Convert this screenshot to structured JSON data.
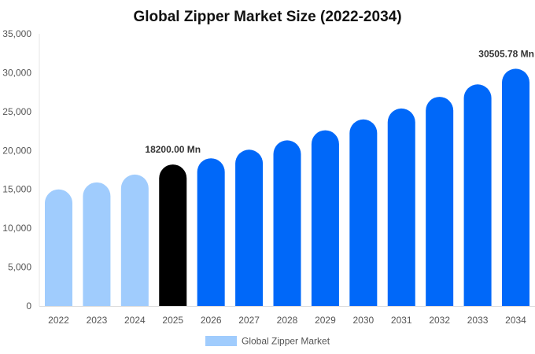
{
  "chart_data": {
    "type": "bar",
    "title": "Global Zipper Market Size (2022-2034)",
    "categories": [
      "2022",
      "2023",
      "2024",
      "2025",
      "2026",
      "2027",
      "2028",
      "2029",
      "2030",
      "2031",
      "2032",
      "2033",
      "2034"
    ],
    "series": [
      {
        "name": "Global Zipper Market",
        "values": [
          15000,
          15900,
          16900,
          18200,
          19000,
          20100,
          21300,
          22600,
          24000,
          25400,
          26900,
          28500,
          30505.78
        ]
      }
    ],
    "bar_colors": [
      "#a0ccfd",
      "#a0ccfd",
      "#a0ccfd",
      "#000000",
      "#0068f9",
      "#0068f9",
      "#0068f9",
      "#0068f9",
      "#0068f9",
      "#0068f9",
      "#0068f9",
      "#0068f9",
      "#0068f9"
    ],
    "data_labels": [
      {
        "category": "2025",
        "text": "18200.00 Mn"
      },
      {
        "category": "2034",
        "text": "30505.78 Mn"
      }
    ],
    "y_ticks": [
      "0",
      "5,000",
      "10,000",
      "15,000",
      "20,000",
      "25,000",
      "30,000",
      "35,000"
    ],
    "ylim": [
      0,
      35000
    ],
    "xlabel": "",
    "ylabel": "",
    "grid": false,
    "legend": {
      "position": "bottom-center",
      "color": "#a0ccfd"
    }
  }
}
